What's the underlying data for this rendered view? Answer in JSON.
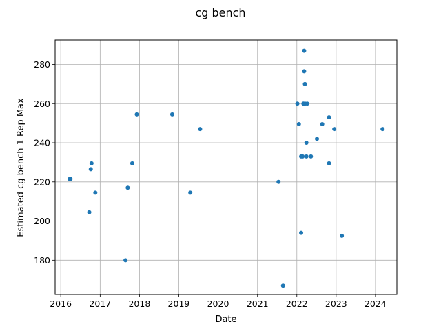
{
  "chart_data": {
    "type": "scatter",
    "title": "cg bench",
    "xlabel": "Date",
    "ylabel": "Estimated cg bench 1 Rep Max",
    "x_ticks": [
      2016,
      2017,
      2018,
      2019,
      2020,
      2021,
      2022,
      2023,
      2024
    ],
    "y_ticks": [
      180,
      200,
      220,
      240,
      260,
      280
    ],
    "xlim": [
      "2015-11-10",
      "2024-07-18"
    ],
    "ylim": [
      162.5,
      292.5
    ],
    "grid": true,
    "colors": {
      "point": "#1f77b4",
      "ylabel": "#0000ff",
      "grid": "#b0b0b0"
    },
    "series": [
      {
        "points": [
          {
            "x": "2016-03-24",
            "y": 221.5
          },
          {
            "x": "2016-04-01",
            "y": 221.5
          },
          {
            "x": "2016-09-22",
            "y": 204.5
          },
          {
            "x": "2016-10-06",
            "y": 226.5
          },
          {
            "x": "2016-10-13",
            "y": 229.5
          },
          {
            "x": "2016-11-17",
            "y": 214.5
          },
          {
            "x": "2017-08-24",
            "y": 180.0
          },
          {
            "x": "2017-09-14",
            "y": 217.0
          },
          {
            "x": "2017-10-26",
            "y": 229.5
          },
          {
            "x": "2017-12-07",
            "y": 254.5
          },
          {
            "x": "2018-11-01",
            "y": 254.5
          },
          {
            "x": "2019-04-18",
            "y": 214.5
          },
          {
            "x": "2019-07-18",
            "y": 247.0
          },
          {
            "x": "2021-07-15",
            "y": 220.0
          },
          {
            "x": "2021-08-26",
            "y": 167.0
          },
          {
            "x": "2022-01-06",
            "y": 260.0
          },
          {
            "x": "2022-01-20",
            "y": 249.5
          },
          {
            "x": "2022-02-10",
            "y": 194.0
          },
          {
            "x": "2022-02-10",
            "y": 233.0
          },
          {
            "x": "2022-02-24",
            "y": 233.0
          },
          {
            "x": "2022-03-03",
            "y": 260.0
          },
          {
            "x": "2022-03-10",
            "y": 287.0
          },
          {
            "x": "2022-03-10",
            "y": 276.5
          },
          {
            "x": "2022-03-17",
            "y": 270.0
          },
          {
            "x": "2022-03-17",
            "y": 260.0
          },
          {
            "x": "2022-03-31",
            "y": 240.0
          },
          {
            "x": "2022-03-31",
            "y": 233.0
          },
          {
            "x": "2022-04-07",
            "y": 260.0
          },
          {
            "x": "2022-05-12",
            "y": 233.0
          },
          {
            "x": "2022-07-07",
            "y": 242.0
          },
          {
            "x": "2022-08-25",
            "y": 249.5
          },
          {
            "x": "2022-10-27",
            "y": 229.5
          },
          {
            "x": "2022-10-27",
            "y": 253.0
          },
          {
            "x": "2022-12-15",
            "y": 247.0
          },
          {
            "x": "2023-02-23",
            "y": 192.5
          },
          {
            "x": "2024-03-07",
            "y": 247.0
          }
        ]
      }
    ]
  }
}
